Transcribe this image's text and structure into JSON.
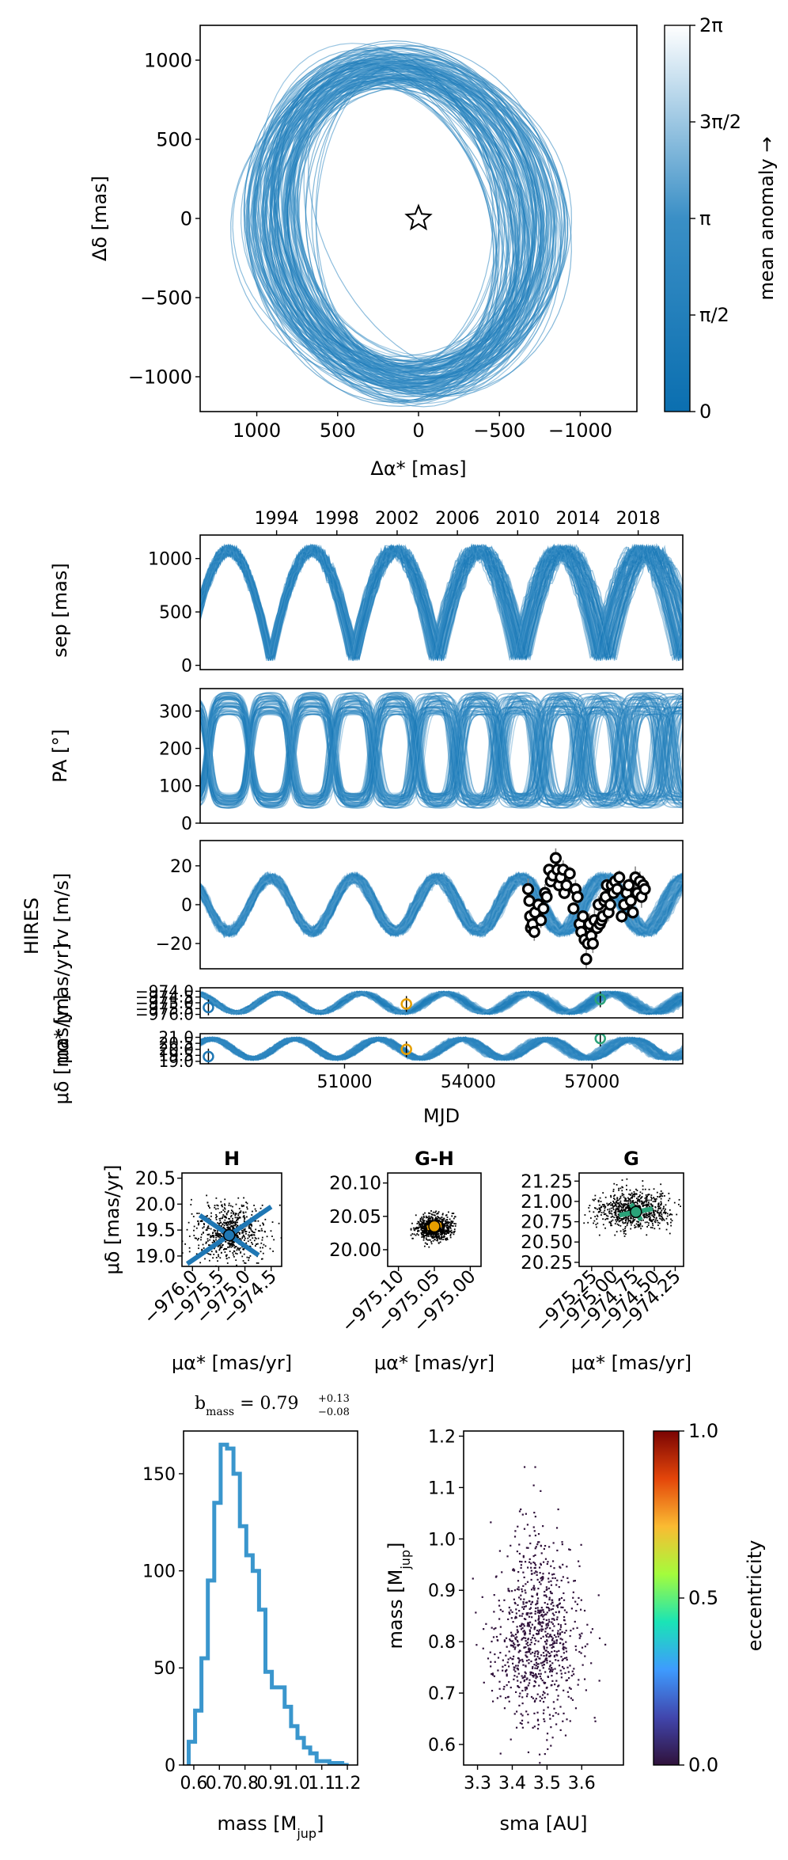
{
  "palette": {
    "orbit_dark": "#0b6fb0",
    "orbit_mid": "#3a8fc6",
    "orbit_light": "#d6e8f4",
    "hist_line": "#3a96cd",
    "gaia_h": "#1f77b4",
    "gaia_gh": "#e69f00",
    "gaia_g": "#2aa379",
    "eccentricity_cmap": [
      "#30123b",
      "#4146ad",
      "#3e9bfe",
      "#1ae4b6",
      "#a4fc3c",
      "#fabb32",
      "#e4460a",
      "#7a0403"
    ]
  },
  "chart_data": [
    {
      "id": "sky",
      "type": "line",
      "xlabel": "Δα* [mas]",
      "ylabel": "Δδ [mas]",
      "xlim": [
        1350,
        -1350
      ],
      "ylim": [
        -1220,
        1220
      ],
      "xticks": [
        {
          "v": 1000,
          "label": "1000"
        },
        {
          "v": 500,
          "label": "500"
        },
        {
          "v": 0,
          "label": "0"
        },
        {
          "v": -500,
          "label": "−500"
        },
        {
          "v": -1000,
          "label": "−1000"
        }
      ],
      "yticks": [
        {
          "v": 1000,
          "label": "1000"
        },
        {
          "v": 500,
          "label": "500"
        },
        {
          "v": 0,
          "label": "0"
        },
        {
          "v": -500,
          "label": "−500"
        },
        {
          "v": -1000,
          "label": "−1000"
        }
      ],
      "orbit_envelope": {
        "center": [
          90,
          -30
        ],
        "semi_x": 950,
        "semi_y": 1100,
        "tilt_deg": -12
      },
      "star": {
        "x": 0,
        "y": 0
      },
      "colorbar": {
        "label": "mean anomaly →",
        "ticks": [
          {
            "v": 0,
            "label": "0"
          },
          {
            "v": 0.25,
            "label": "π/2"
          },
          {
            "v": 0.5,
            "label": "π"
          },
          {
            "v": 0.75,
            "label": "3π/2"
          },
          {
            "v": 1,
            "label": "2π"
          }
        ]
      }
    },
    {
      "id": "sep",
      "type": "line",
      "ylabel": "sep [mas]",
      "xlim": [
        47500,
        59200
      ],
      "ylim": [
        -40,
        1220
      ],
      "yticks": [
        {
          "v": 0,
          "label": "0"
        },
        {
          "v": 500,
          "label": "500"
        },
        {
          "v": 1000,
          "label": "1000"
        }
      ],
      "top_axis_years": [
        {
          "mjd": 49353,
          "label": "1994"
        },
        {
          "mjd": 50814,
          "label": "1998"
        },
        {
          "mjd": 52275,
          "label": "2002"
        },
        {
          "mjd": 53736,
          "label": "2006"
        },
        {
          "mjd": 55197,
          "label": "2010"
        },
        {
          "mjd": 56658,
          "label": "2014"
        },
        {
          "mjd": 58119,
          "label": "2018"
        }
      ],
      "period_days": 2020,
      "phase_mjd": 48200,
      "range": [
        40,
        1130
      ]
    },
    {
      "id": "pa",
      "type": "line",
      "ylabel": "PA [°]",
      "xlim": [
        47500,
        59200
      ],
      "ylim": [
        0,
        360
      ],
      "yticks": [
        {
          "v": 0,
          "label": "0"
        },
        {
          "v": 100,
          "label": "100"
        },
        {
          "v": 200,
          "label": "200"
        },
        {
          "v": 300,
          "label": "300"
        }
      ],
      "period_days": 2020,
      "phase_mjd": 48200
    },
    {
      "id": "rv",
      "type": "scatter",
      "ylabel": "HIRES\nrv [m/s]",
      "xlim": [
        47500,
        59200
      ],
      "ylim": [
        -33,
        33
      ],
      "yticks": [
        {
          "v": -20,
          "label": "−20"
        },
        {
          "v": 0,
          "label": "0"
        },
        {
          "v": 20,
          "label": "20"
        }
      ],
      "period_days": 2020,
      "amplitude": 14,
      "points": [
        {
          "x": 55450,
          "y": 8
        },
        {
          "x": 55480,
          "y": 2
        },
        {
          "x": 55500,
          "y": -6
        },
        {
          "x": 55520,
          "y": -12
        },
        {
          "x": 55560,
          "y": -10
        },
        {
          "x": 55600,
          "y": -14
        },
        {
          "x": 55620,
          "y": -4
        },
        {
          "x": 55700,
          "y": 0
        },
        {
          "x": 55760,
          "y": -8
        },
        {
          "x": 55820,
          "y": -2
        },
        {
          "x": 55860,
          "y": 6
        },
        {
          "x": 55900,
          "y": 4
        },
        {
          "x": 55960,
          "y": 18
        },
        {
          "x": 56000,
          "y": 12
        },
        {
          "x": 56050,
          "y": 15
        },
        {
          "x": 56120,
          "y": 24
        },
        {
          "x": 56160,
          "y": 18
        },
        {
          "x": 56200,
          "y": 10
        },
        {
          "x": 56240,
          "y": 14
        },
        {
          "x": 56300,
          "y": 18
        },
        {
          "x": 56330,
          "y": 6
        },
        {
          "x": 56380,
          "y": 10
        },
        {
          "x": 56460,
          "y": 16
        },
        {
          "x": 56550,
          "y": -2
        },
        {
          "x": 56600,
          "y": 8
        },
        {
          "x": 56650,
          "y": 4
        },
        {
          "x": 56700,
          "y": -10
        },
        {
          "x": 56740,
          "y": -14
        },
        {
          "x": 56780,
          "y": -6
        },
        {
          "x": 56820,
          "y": -18
        },
        {
          "x": 56860,
          "y": -28
        },
        {
          "x": 56900,
          "y": -20
        },
        {
          "x": 56940,
          "y": -10
        },
        {
          "x": 56980,
          "y": -16
        },
        {
          "x": 57020,
          "y": -20
        },
        {
          "x": 57060,
          "y": -8
        },
        {
          "x": 57120,
          "y": -12
        },
        {
          "x": 57160,
          "y": 0
        },
        {
          "x": 57190,
          "y": -10
        },
        {
          "x": 57230,
          "y": -8
        },
        {
          "x": 57260,
          "y": -6
        },
        {
          "x": 57300,
          "y": 2
        },
        {
          "x": 57330,
          "y": 4
        },
        {
          "x": 57360,
          "y": 10
        },
        {
          "x": 57400,
          "y": -4
        },
        {
          "x": 57440,
          "y": 0
        },
        {
          "x": 57480,
          "y": 10
        },
        {
          "x": 57520,
          "y": 6
        },
        {
          "x": 57560,
          "y": 12
        },
        {
          "x": 57610,
          "y": 8
        },
        {
          "x": 57660,
          "y": 14
        },
        {
          "x": 57720,
          "y": -6
        },
        {
          "x": 57780,
          "y": 0
        },
        {
          "x": 57840,
          "y": 6
        },
        {
          "x": 57890,
          "y": 10
        },
        {
          "x": 57940,
          "y": 2
        },
        {
          "x": 57990,
          "y": -4
        },
        {
          "x": 58050,
          "y": 14
        },
        {
          "x": 58100,
          "y": 6
        },
        {
          "x": 58160,
          "y": 12
        },
        {
          "x": 58200,
          "y": 4
        },
        {
          "x": 58240,
          "y": 10
        },
        {
          "x": 58280,
          "y": 8
        }
      ]
    },
    {
      "id": "pmra",
      "type": "scatter",
      "ylabel": "μα* [mas/yr]",
      "xlim": [
        47500,
        59200
      ],
      "ylim": [
        -976.3,
        -973.7
      ],
      "yticks": [
        {
          "v": -974.0,
          "label": "−974.0"
        },
        {
          "v": -974.5,
          "label": "−974.5"
        },
        {
          "v": -975.0,
          "label": "−975.0"
        },
        {
          "v": -975.5,
          "label": "−975.5"
        },
        {
          "v": -976.0,
          "label": "−976.0"
        }
      ],
      "points": [
        {
          "x": 47700,
          "y": -975.4,
          "series": "H"
        },
        {
          "x": 52500,
          "y": -975.1,
          "series": "G-H"
        },
        {
          "x": 57200,
          "y": -974.7,
          "series": "G"
        }
      ]
    },
    {
      "id": "pmdec",
      "type": "scatter",
      "ylabel": "μδ [mas/yr]",
      "xlabel": "MJD",
      "xlim": [
        47500,
        59200
      ],
      "xticks": [
        {
          "v": 51000,
          "label": "51000"
        },
        {
          "v": 54000,
          "label": "54000"
        },
        {
          "v": 57000,
          "label": "57000"
        }
      ],
      "ylim": [
        18.8,
        21.3
      ],
      "yticks": [
        {
          "v": 19.0,
          "label": "19.0"
        },
        {
          "v": 19.5,
          "label": "19.5"
        },
        {
          "v": 20.0,
          "label": "20.0"
        },
        {
          "v": 20.5,
          "label": "20.5"
        },
        {
          "v": 21.0,
          "label": "21.0"
        }
      ],
      "points": [
        {
          "x": 47700,
          "y": 19.4,
          "series": "H"
        },
        {
          "x": 52500,
          "y": 20.0,
          "series": "G-H"
        },
        {
          "x": 57200,
          "y": 20.9,
          "series": "G"
        }
      ]
    },
    {
      "id": "pm_h",
      "type": "scatter",
      "title": "H",
      "xlabel": "μα* [mas/yr]",
      "ylabel": "μδ [mas/yr]",
      "xlim": [
        -976.2,
        -974.3
      ],
      "ylim": [
        18.8,
        20.6
      ],
      "xticks": [
        {
          "v": -976.0,
          "label": "−976.0"
        },
        {
          "v": -975.5,
          "label": "−975.5"
        },
        {
          "v": -975.0,
          "label": "−975.0"
        },
        {
          "v": -974.5,
          "label": "−974.5"
        }
      ],
      "yticks": [
        {
          "v": 19.0,
          "label": "19.0"
        },
        {
          "v": 19.5,
          "label": "19.5"
        },
        {
          "v": 20.0,
          "label": "20.0"
        },
        {
          "v": 20.5,
          "label": "20.5"
        }
      ],
      "cloud": {
        "cx": -975.3,
        "cy": 19.45,
        "sx": 0.32,
        "sy": 0.28,
        "n": 700
      },
      "measurement": {
        "x": -975.3,
        "y": 19.4,
        "err_x": 0.8,
        "err_y": 0.55,
        "series": "H"
      }
    },
    {
      "id": "pm_gh",
      "type": "scatter",
      "title": "G-H",
      "xlabel": "μα* [mas/yr]",
      "xlim": [
        -975.115,
        -974.985
      ],
      "ylim": [
        19.975,
        20.115
      ],
      "xticks": [
        {
          "v": -975.1,
          "label": "−975.10"
        },
        {
          "v": -975.05,
          "label": "−975.05"
        },
        {
          "v": -975.0,
          "label": "−975.00"
        }
      ],
      "yticks": [
        {
          "v": 20.0,
          "label": "20.00"
        },
        {
          "v": 20.05,
          "label": "20.05"
        },
        {
          "v": 20.1,
          "label": "20.10"
        }
      ],
      "cloud": {
        "cx": -975.05,
        "cy": 20.033,
        "sx": 0.012,
        "sy": 0.009,
        "n": 900
      },
      "measurement": {
        "x": -975.05,
        "y": 20.035,
        "err_x": 0.01,
        "err_y": 0.006,
        "series": "G-H"
      }
    },
    {
      "id": "pm_g",
      "type": "scatter",
      "title": "G",
      "xlabel": "μα* [mas/yr]",
      "xlim": [
        -975.4,
        -974.15
      ],
      "ylim": [
        20.2,
        21.35
      ],
      "xticks": [
        {
          "v": -975.25,
          "label": "−975.25"
        },
        {
          "v": -975.0,
          "label": "−975.00"
        },
        {
          "v": -974.75,
          "label": "−974.75"
        },
        {
          "v": -974.5,
          "label": "−974.50"
        },
        {
          "v": -974.25,
          "label": "−974.25"
        }
      ],
      "yticks": [
        {
          "v": 20.25,
          "label": "20.25"
        },
        {
          "v": 20.5,
          "label": "20.50"
        },
        {
          "v": 20.75,
          "label": "20.75"
        },
        {
          "v": 21.0,
          "label": "21.00"
        },
        {
          "v": 21.25,
          "label": "21.25"
        }
      ],
      "cloud": {
        "cx": -974.75,
        "cy": 20.9,
        "sx": 0.22,
        "sy": 0.12,
        "n": 800
      },
      "measurement": {
        "x": -974.72,
        "y": 20.87,
        "err_x": 0.2,
        "err_y": 0.1,
        "series": "G"
      }
    },
    {
      "id": "mass_hist",
      "type": "bar",
      "title_main": "b",
      "title_sub": "mass",
      "title_eq": " =  0.79",
      "title_up": "+0.13",
      "title_down": "−0.08",
      "xlabel_main": "mass [M",
      "xlabel_sub": "jup",
      "xlabel_end": "]",
      "xlim": [
        0.56,
        1.24
      ],
      "ylim": [
        0,
        172
      ],
      "xticks": [
        {
          "v": 0.6,
          "label": "0.6"
        },
        {
          "v": 0.7,
          "label": "0.7"
        },
        {
          "v": 0.8,
          "label": "0.8"
        },
        {
          "v": 0.9,
          "label": "0.9"
        },
        {
          "v": 1.0,
          "label": "1.0"
        },
        {
          "v": 1.1,
          "label": "1.1"
        },
        {
          "v": 1.2,
          "label": "1.2"
        }
      ],
      "yticks": [
        {
          "v": 0,
          "label": "0"
        },
        {
          "v": 50,
          "label": "50"
        },
        {
          "v": 100,
          "label": "100"
        },
        {
          "v": 150,
          "label": "150"
        }
      ],
      "bin_edges": [
        0.58,
        0.605,
        0.63,
        0.655,
        0.68,
        0.705,
        0.73,
        0.755,
        0.78,
        0.805,
        0.83,
        0.855,
        0.88,
        0.905,
        0.93,
        0.955,
        0.98,
        1.005,
        1.03,
        1.055,
        1.08,
        1.105,
        1.13,
        1.155,
        1.18,
        1.205
      ],
      "counts": [
        12,
        28,
        55,
        95,
        135,
        165,
        163,
        150,
        123,
        108,
        100,
        80,
        48,
        40,
        40,
        30,
        20,
        14,
        9,
        6,
        2,
        2,
        1,
        1,
        0
      ]
    },
    {
      "id": "mass_sma",
      "type": "scatter",
      "xlabel": "sma [AU]",
      "ylabel_main": "mass [M",
      "ylabel_sub": "jup",
      "ylabel_end": "]",
      "xlim": [
        3.26,
        3.72
      ],
      "ylim": [
        0.56,
        1.21
      ],
      "xticks": [
        {
          "v": 3.3,
          "label": "3.3"
        },
        {
          "v": 3.4,
          "label": "3.4"
        },
        {
          "v": 3.5,
          "label": "3.5"
        },
        {
          "v": 3.6,
          "label": "3.6"
        }
      ],
      "yticks": [
        {
          "v": 0.6,
          "label": "0.6"
        },
        {
          "v": 0.7,
          "label": "0.7"
        },
        {
          "v": 0.8,
          "label": "0.8"
        },
        {
          "v": 0.9,
          "label": "0.9"
        },
        {
          "v": 1.0,
          "label": "1.0"
        },
        {
          "v": 1.1,
          "label": "1.1"
        },
        {
          "v": 1.2,
          "label": "1.2"
        }
      ],
      "cloud": {
        "cx": 3.47,
        "cy": 0.8,
        "sx": 0.06,
        "sy": 0.1,
        "n": 900
      },
      "colorbar": {
        "label": "eccentricity",
        "ticks": [
          {
            "v": 0,
            "label": "0.0"
          },
          {
            "v": 0.5,
            "label": "0.5"
          },
          {
            "v": 1,
            "label": "1.0"
          }
        ]
      }
    }
  ]
}
